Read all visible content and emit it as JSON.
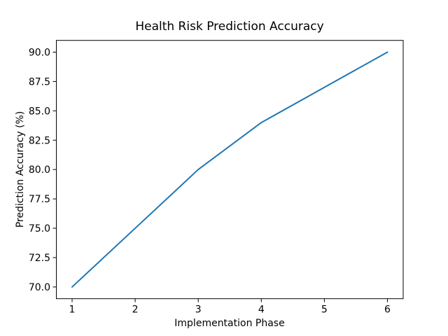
{
  "figure": {
    "background": "#ffffff"
  },
  "chart_data": {
    "type": "line",
    "title": "Health Risk Prediction Accuracy",
    "xlabel": "Implementation Phase",
    "ylabel": "Prediction Accuracy (%)",
    "x": [
      1,
      2,
      3,
      4,
      5,
      6
    ],
    "y": [
      70,
      75,
      80,
      84,
      87,
      90
    ],
    "xticks": [
      1,
      2,
      3,
      4,
      5,
      6
    ],
    "xtick_labels": [
      "1",
      "2",
      "3",
      "4",
      "5",
      "6"
    ],
    "yticks": [
      70,
      72.5,
      75,
      77.5,
      80,
      82.5,
      85,
      87.5,
      90
    ],
    "ytick_labels": [
      "70.0",
      "72.5",
      "75.0",
      "77.5",
      "80.0",
      "82.5",
      "85.0",
      "87.5",
      "90.0"
    ],
    "xlim": [
      0.75,
      6.25
    ],
    "ylim": [
      69,
      91
    ],
    "line_color": "#1f77b4",
    "line_width": 2,
    "axis_color": "#000000",
    "text_color": "#000000",
    "tick_font_size": 14,
    "grid": false,
    "legend": null
  }
}
